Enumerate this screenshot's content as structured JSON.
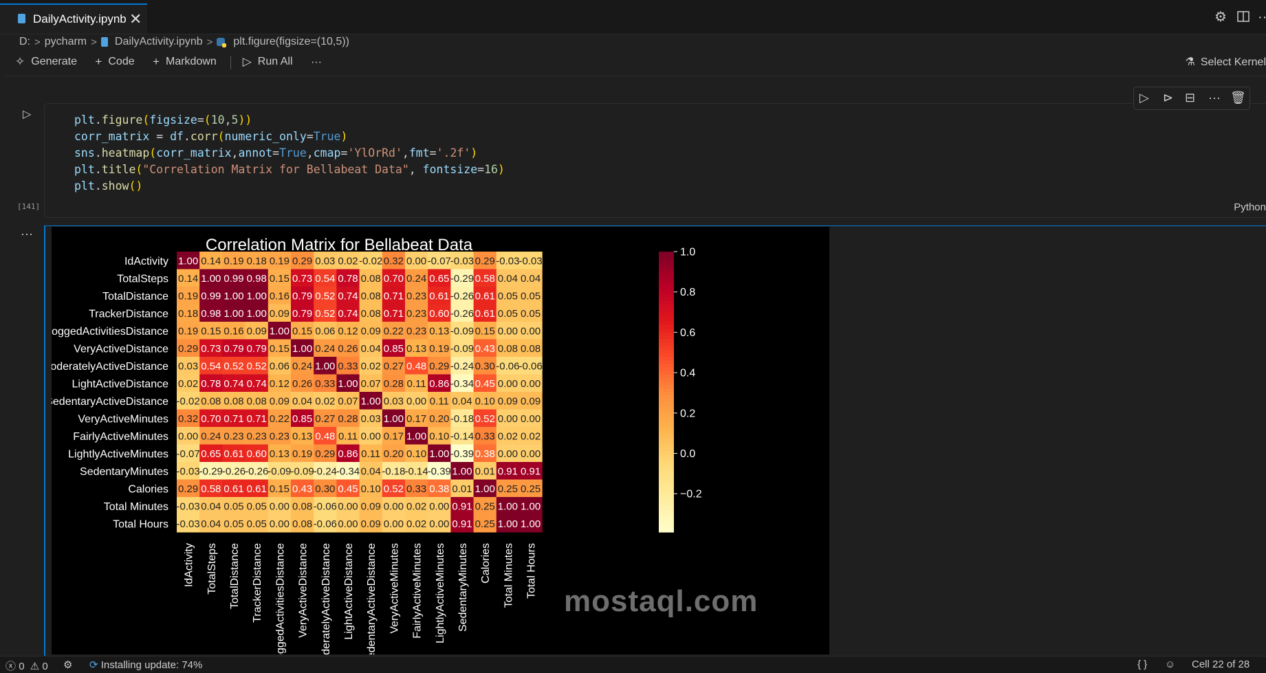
{
  "tab": {
    "title": "DailyActivity.ipynb",
    "close": "✕"
  },
  "breadcrumb": {
    "drive": "D:",
    "folder": "pycharm",
    "file": "DailyActivity.ipynb",
    "symbol": "plt.figure(figsize=(10,5))"
  },
  "toolbar": {
    "generate": "Generate",
    "code": "Code",
    "markdown": "Markdown",
    "run_all": "Run All",
    "more": "···",
    "select_kernel": "Select Kernel"
  },
  "cell": {
    "execution_count": "[141]",
    "language": "Python",
    "code_lines": [
      "plt.figure(figsize=(10,5))",
      "corr_matrix = df.corr(numeric_only=True)",
      "sns.heatmap(corr_matrix,annot=True,cmap='YlOrRd',fmt='.2f')",
      "plt.title(\"Correlation Matrix for Bellabeat Data\", fontsize=16)",
      "plt.show()"
    ]
  },
  "output": {
    "more": "···"
  },
  "chart_data": {
    "type": "heatmap",
    "title": "Correlation Matrix for Bellabeat Data",
    "cmap": "YlOrRd",
    "row_labels": [
      "IdActivity",
      "TotalSteps",
      "TotalDistance",
      "TrackerDistance",
      "LoggedActivitiesDistance",
      "VeryActiveDistance",
      "ModeratelyActiveDistance",
      "LightActiveDistance",
      "SedentaryActiveDistance",
      "VeryActiveMinutes",
      "FairlyActiveMinutes",
      "LightlyActiveMinutes",
      "SedentaryMinutes",
      "Calories",
      "Total Minutes",
      "Total Hours"
    ],
    "col_labels": [
      "IdActivity",
      "TotalSteps",
      "TotalDistance",
      "TrackerDistance",
      "LoggedActivitiesDistance",
      "VeryActiveDistance",
      "ModeratelyActiveDistance",
      "LightActiveDistance",
      "SedentaryActiveDistance",
      "VeryActiveMinutes",
      "FairlyActiveMinutes",
      "LightlyActiveMinutes",
      "SedentaryMinutes",
      "Calories",
      "Total Minutes",
      "Total Hours"
    ],
    "values": [
      [
        1.0,
        0.14,
        0.19,
        0.18,
        0.19,
        0.29,
        0.03,
        0.02,
        -0.02,
        0.32,
        0.0,
        -0.07,
        -0.03,
        0.29,
        -0.03,
        -0.03
      ],
      [
        0.14,
        1.0,
        0.99,
        0.98,
        0.15,
        0.73,
        0.54,
        0.78,
        0.08,
        0.7,
        0.24,
        0.65,
        -0.29,
        0.58,
        0.04,
        0.04
      ],
      [
        0.19,
        0.99,
        1.0,
        1.0,
        0.16,
        0.79,
        0.52,
        0.74,
        0.08,
        0.71,
        0.23,
        0.61,
        -0.26,
        0.61,
        0.05,
        0.05
      ],
      [
        0.18,
        0.98,
        1.0,
        1.0,
        0.09,
        0.79,
        0.52,
        0.74,
        0.08,
        0.71,
        0.23,
        0.6,
        -0.26,
        0.61,
        0.05,
        0.05
      ],
      [
        0.19,
        0.15,
        0.16,
        0.09,
        1.0,
        0.15,
        0.06,
        0.12,
        0.09,
        0.22,
        0.23,
        0.13,
        -0.09,
        0.15,
        -0.0,
        -0.0
      ],
      [
        0.29,
        0.73,
        0.79,
        0.79,
        0.15,
        1.0,
        0.24,
        0.26,
        0.04,
        0.85,
        0.13,
        0.19,
        -0.09,
        0.43,
        0.08,
        0.08
      ],
      [
        0.03,
        0.54,
        0.52,
        0.52,
        0.06,
        0.24,
        1.0,
        0.33,
        0.02,
        0.27,
        0.48,
        0.29,
        -0.24,
        0.3,
        -0.06,
        -0.06
      ],
      [
        0.02,
        0.78,
        0.74,
        0.74,
        0.12,
        0.26,
        0.33,
        1.0,
        0.07,
        0.28,
        0.11,
        0.86,
        -0.34,
        0.45,
        0.0,
        0.0
      ],
      [
        -0.02,
        0.08,
        0.08,
        0.08,
        0.09,
        0.04,
        0.02,
        0.07,
        1.0,
        0.03,
        -0.0,
        0.11,
        0.04,
        0.1,
        0.09,
        0.09
      ],
      [
        0.32,
        0.7,
        0.71,
        0.71,
        0.22,
        0.85,
        0.27,
        0.28,
        0.03,
        1.0,
        0.17,
        0.2,
        -0.18,
        0.52,
        -0.0,
        -0.0
      ],
      [
        0.0,
        0.24,
        0.23,
        0.23,
        0.23,
        0.13,
        0.48,
        0.11,
        -0.0,
        0.17,
        1.0,
        0.1,
        -0.14,
        0.33,
        0.02,
        0.02
      ],
      [
        -0.07,
        0.65,
        0.61,
        0.6,
        0.13,
        0.19,
        0.29,
        0.86,
        0.11,
        0.2,
        0.1,
        1.0,
        -0.39,
        0.38,
        -0.0,
        -0.0
      ],
      [
        -0.03,
        -0.29,
        -0.26,
        -0.26,
        -0.09,
        -0.09,
        -0.24,
        -0.34,
        0.04,
        -0.18,
        -0.14,
        -0.39,
        1.0,
        0.01,
        0.91,
        0.91
      ],
      [
        0.29,
        0.58,
        0.61,
        0.61,
        0.15,
        0.43,
        0.3,
        0.45,
        0.1,
        0.52,
        0.33,
        0.38,
        0.01,
        1.0,
        0.25,
        0.25
      ],
      [
        -0.03,
        0.04,
        0.05,
        0.05,
        -0.0,
        0.08,
        -0.06,
        0.0,
        0.09,
        -0.0,
        0.02,
        -0.0,
        0.91,
        0.25,
        1.0,
        1.0
      ],
      [
        -0.03,
        0.04,
        0.05,
        0.05,
        -0.0,
        0.08,
        -0.06,
        0.0,
        0.09,
        -0.0,
        0.02,
        -0.0,
        0.91,
        0.25,
        1.0,
        1.0
      ]
    ],
    "colorbar": {
      "vmin": -0.39,
      "vmax": 1.0,
      "ticks": [
        "1.0",
        "0.8",
        "0.6",
        "0.4",
        "0.2",
        "0.0",
        "−0.2"
      ],
      "tick_values": [
        1.0,
        0.8,
        0.6,
        0.4,
        0.2,
        0.0,
        -0.2
      ]
    },
    "colors": {
      "low": "#ffffcc",
      "mid_low": "#fed976",
      "mid": "#fd8d3c",
      "mid_high": "#e31a1c",
      "high": "#800026"
    }
  },
  "watermark": "mostaql.com",
  "statusbar": {
    "errors": "0",
    "warnings": "0",
    "update": "Installing update: 74%",
    "braces": "{ }",
    "cell_position": "Cell 22 of 28"
  }
}
